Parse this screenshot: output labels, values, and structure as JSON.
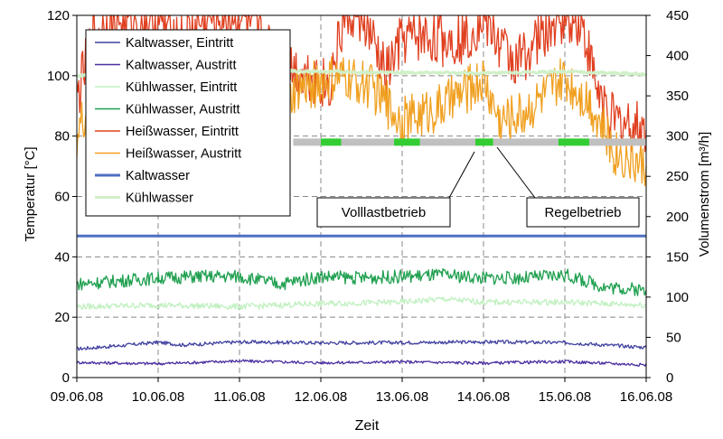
{
  "chart_data": {
    "type": "line",
    "xlabel": "Zeit",
    "ylabel": "Temperatur [°C]",
    "y2label": "Volumenstrom [m³/h]",
    "x_ticks": [
      "09.06.08",
      "10.06.08",
      "11.06.08",
      "12.06.08",
      "13.06.08",
      "14.06.08",
      "15.06.08",
      "16.06.08"
    ],
    "ylim": [
      0,
      120
    ],
    "y_ticks": [
      0,
      20,
      40,
      60,
      80,
      100,
      120
    ],
    "y2lim": [
      0,
      450
    ],
    "y2_ticks": [
      0,
      50,
      100,
      150,
      200,
      250,
      300,
      350,
      400,
      450
    ],
    "grid": "dashed",
    "legend_position": "top-left",
    "series": [
      {
        "name": "Kaltwasser, Eintritt",
        "color": "#4040a0",
        "axis": "left",
        "points": [
          [
            0,
            9.5
          ],
          [
            0.5,
            10.5
          ],
          [
            1,
            11.7
          ],
          [
            1.3,
            10.8
          ],
          [
            2,
            11.8
          ],
          [
            3,
            11.5
          ],
          [
            4,
            11.6
          ],
          [
            5,
            11.8
          ],
          [
            6,
            11.6
          ],
          [
            7,
            10.0
          ]
        ]
      },
      {
        "name": "Kaltwasser, Austritt",
        "color": "#4a2fa0",
        "axis": "left",
        "points": [
          [
            0,
            5
          ],
          [
            1,
            4.6
          ],
          [
            2,
            5.5
          ],
          [
            3,
            4.9
          ],
          [
            4,
            5.2
          ],
          [
            5,
            4.8
          ],
          [
            6,
            5.3
          ],
          [
            7,
            4.2
          ]
        ]
      },
      {
        "name": "Kühlwasser, Eintritt",
        "color": "#c0f0c0",
        "axis": "left",
        "points": [
          [
            0,
            23.5
          ],
          [
            1,
            24
          ],
          [
            2,
            23.5
          ],
          [
            3,
            24.5
          ],
          [
            4,
            25
          ],
          [
            4.5,
            26
          ],
          [
            5,
            25
          ],
          [
            6,
            25
          ],
          [
            7,
            24
          ]
        ]
      },
      {
        "name": "Kühlwasser, Austritt",
        "color": "#20a050",
        "axis": "left",
        "points": [
          [
            0,
            31
          ],
          [
            1,
            33
          ],
          [
            1.5,
            33.5
          ],
          [
            2,
            33.5
          ],
          [
            2.5,
            31
          ],
          [
            3,
            33.5
          ],
          [
            3.5,
            33
          ],
          [
            4,
            33.5
          ],
          [
            4.5,
            34
          ],
          [
            5,
            33
          ],
          [
            5.5,
            33
          ],
          [
            6,
            34
          ],
          [
            6.5,
            30
          ],
          [
            7,
            29
          ]
        ]
      },
      {
        "name": "Heißwasser, Eintritt",
        "color": "#e04020",
        "axis": "left",
        "points": [
          [
            0,
            92
          ],
          [
            0.2,
            113
          ],
          [
            0.4,
            118
          ],
          [
            0.7,
            119
          ],
          [
            1,
            119
          ],
          [
            1.3,
            112
          ],
          [
            1.6,
            119
          ],
          [
            2,
            120
          ],
          [
            2.4,
            108
          ],
          [
            2.6,
            103
          ],
          [
            2.9,
            100
          ],
          [
            3.1,
            96
          ],
          [
            3.3,
            120
          ],
          [
            3.5,
            120
          ],
          [
            3.8,
            100
          ],
          [
            4,
            112
          ],
          [
            4.2,
            113
          ],
          [
            4.5,
            112
          ],
          [
            4.8,
            113
          ],
          [
            5,
            120
          ],
          [
            5.2,
            110
          ],
          [
            5.4,
            104
          ],
          [
            5.6,
            110
          ],
          [
            6,
            120
          ],
          [
            6.2,
            118
          ],
          [
            6.4,
            95
          ],
          [
            6.6,
            85
          ],
          [
            7,
            82
          ]
        ]
      },
      {
        "name": "Heißwasser, Austritt",
        "color": "#f0a020",
        "axis": "left",
        "points": [
          [
            0,
            80
          ],
          [
            0.3,
            100
          ],
          [
            0.6,
            98
          ],
          [
            1,
            99
          ],
          [
            1.3,
            92
          ],
          [
            1.6,
            98
          ],
          [
            2,
            99
          ],
          [
            2.4,
            82
          ],
          [
            2.7,
            95
          ],
          [
            3,
            98
          ],
          [
            3.3,
            99
          ],
          [
            3.6,
            97
          ],
          [
            4,
            85
          ],
          [
            4.5,
            90
          ],
          [
            5,
            99
          ],
          [
            5.2,
            85
          ],
          [
            5.5,
            88
          ],
          [
            6,
            99
          ],
          [
            6.3,
            92
          ],
          [
            6.6,
            75
          ],
          [
            7,
            70
          ]
        ]
      },
      {
        "name": "Kaltwasser",
        "color": "#4f6fc0",
        "axis": "right",
        "points": [
          [
            0,
            176
          ],
          [
            7,
            176
          ]
        ]
      },
      {
        "name": "Kühlwasser",
        "color": "#d0f0c8",
        "axis": "right",
        "points": [
          [
            0,
            375
          ],
          [
            1,
            378
          ],
          [
            2,
            379
          ],
          [
            2.5,
            381
          ],
          [
            3,
            380
          ],
          [
            4,
            379
          ],
          [
            5,
            378
          ],
          [
            6,
            380
          ],
          [
            7,
            377
          ]
        ]
      }
    ],
    "status_bar": {
      "level": 78,
      "segments": [
        {
          "from": 2.66,
          "to": 3.0,
          "state": "Regelbetrieb",
          "color": "#c0c0c0"
        },
        {
          "from": 3.0,
          "to": 3.25,
          "state": "Volllastbetrieb",
          "color": "#33cc33"
        },
        {
          "from": 3.25,
          "to": 3.9,
          "state": "Regelbetrieb",
          "color": "#c0c0c0"
        },
        {
          "from": 3.9,
          "to": 4.22,
          "state": "Volllastbetrieb",
          "color": "#33cc33"
        },
        {
          "from": 4.22,
          "to": 4.9,
          "state": "Regelbetrieb",
          "color": "#c0c0c0"
        },
        {
          "from": 4.9,
          "to": 5.12,
          "state": "Volllastbetrieb",
          "color": "#33cc33"
        },
        {
          "from": 5.12,
          "to": 5.92,
          "state": "Regelbetrieb",
          "color": "#c0c0c0"
        },
        {
          "from": 5.92,
          "to": 6.3,
          "state": "Volllastbetrieb",
          "color": "#33cc33"
        },
        {
          "from": 6.3,
          "to": 7.0,
          "state": "Regelbetrieb",
          "color": "#c0c0c0"
        }
      ]
    },
    "annotations": [
      {
        "text": "Volllastbetrieb",
        "target_x": 5.0,
        "target_y": 78
      },
      {
        "text": "Regelbetrieb",
        "target_x": 5.15,
        "target_y": 78
      }
    ]
  }
}
